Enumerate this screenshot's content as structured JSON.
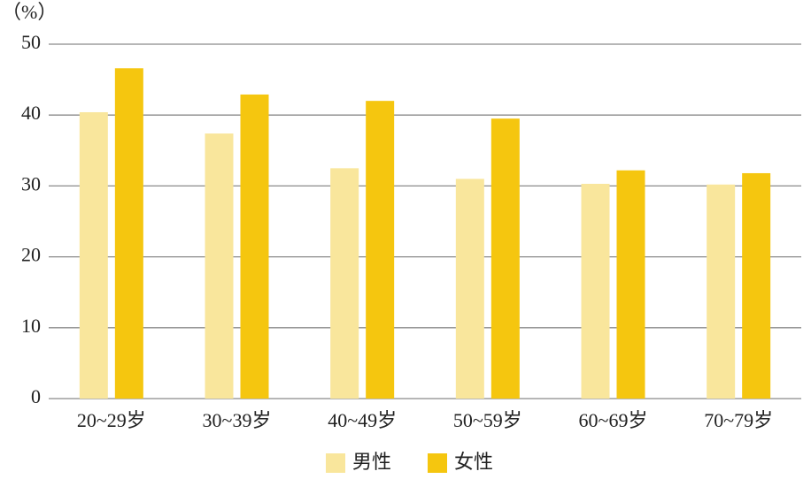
{
  "chart_data": {
    "type": "bar",
    "y_label": "（%）",
    "categories": [
      "20~29岁",
      "30~39岁",
      "40~49岁",
      "50~59岁",
      "60~69岁",
      "70~79岁"
    ],
    "series": [
      {
        "name": "男性",
        "color": "#f9e69c",
        "values": [
          40.4,
          37.4,
          32.5,
          31.0,
          30.3,
          30.2
        ]
      },
      {
        "name": "女性",
        "color": "#f5c60f",
        "values": [
          46.6,
          42.9,
          42.0,
          39.5,
          32.2,
          31.8
        ]
      }
    ],
    "ylim": [
      0,
      50
    ],
    "yticks": [
      0,
      10,
      20,
      30,
      40,
      50
    ],
    "grid": true,
    "legend": "bottom"
  }
}
